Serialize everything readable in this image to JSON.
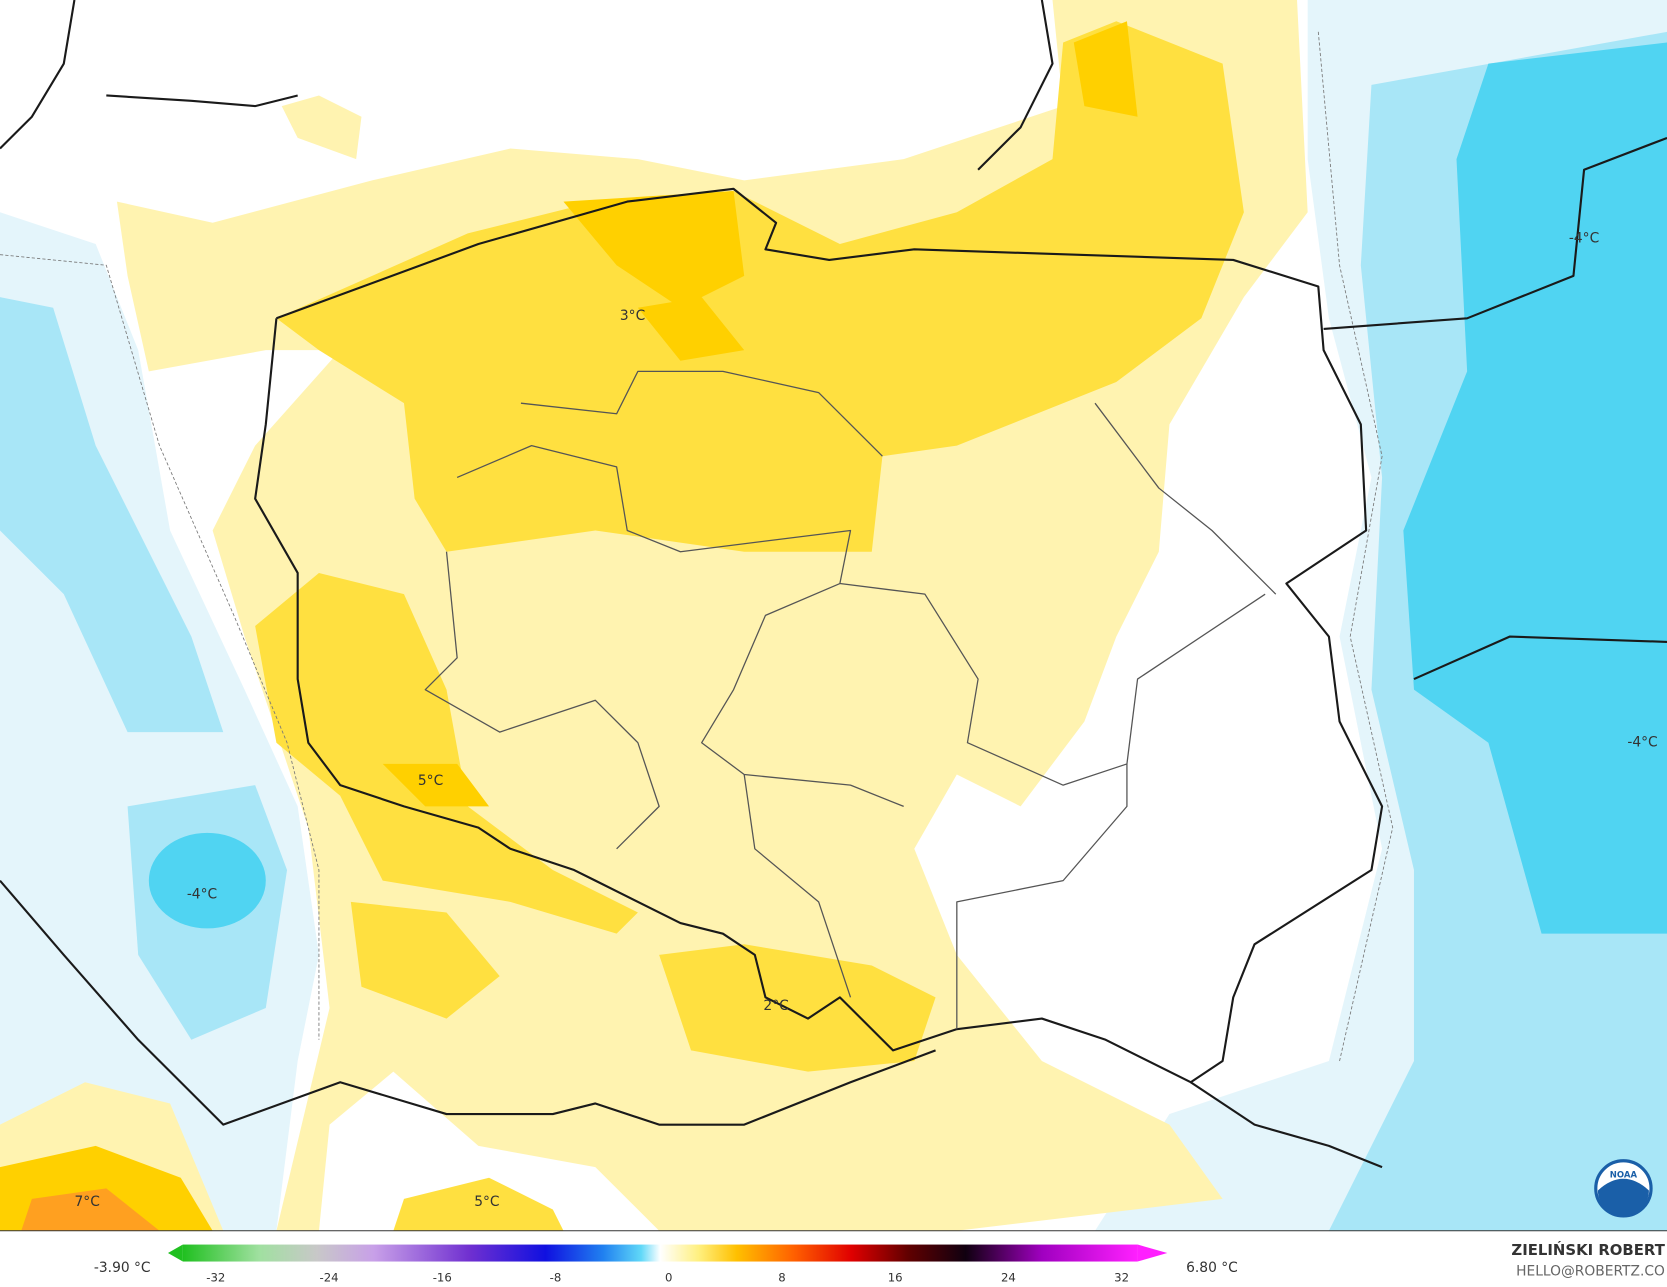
{
  "map": {
    "contour_labels": [
      "3°C",
      "-4°C",
      "-4°C",
      "5°C",
      "-4°C",
      "2°C",
      "7°C",
      "5°C"
    ],
    "legend": {
      "min_label": "-3.90 °C",
      "max_label": "6.80 °C",
      "ticks": [
        -32,
        -24,
        -16,
        -8,
        0,
        8,
        16,
        24,
        32
      ]
    },
    "credit": {
      "author": "ZIELIŃSKI ROBERT",
      "email": "HELLO@ROBERTZ.CO"
    },
    "logo": "NOAA"
  }
}
